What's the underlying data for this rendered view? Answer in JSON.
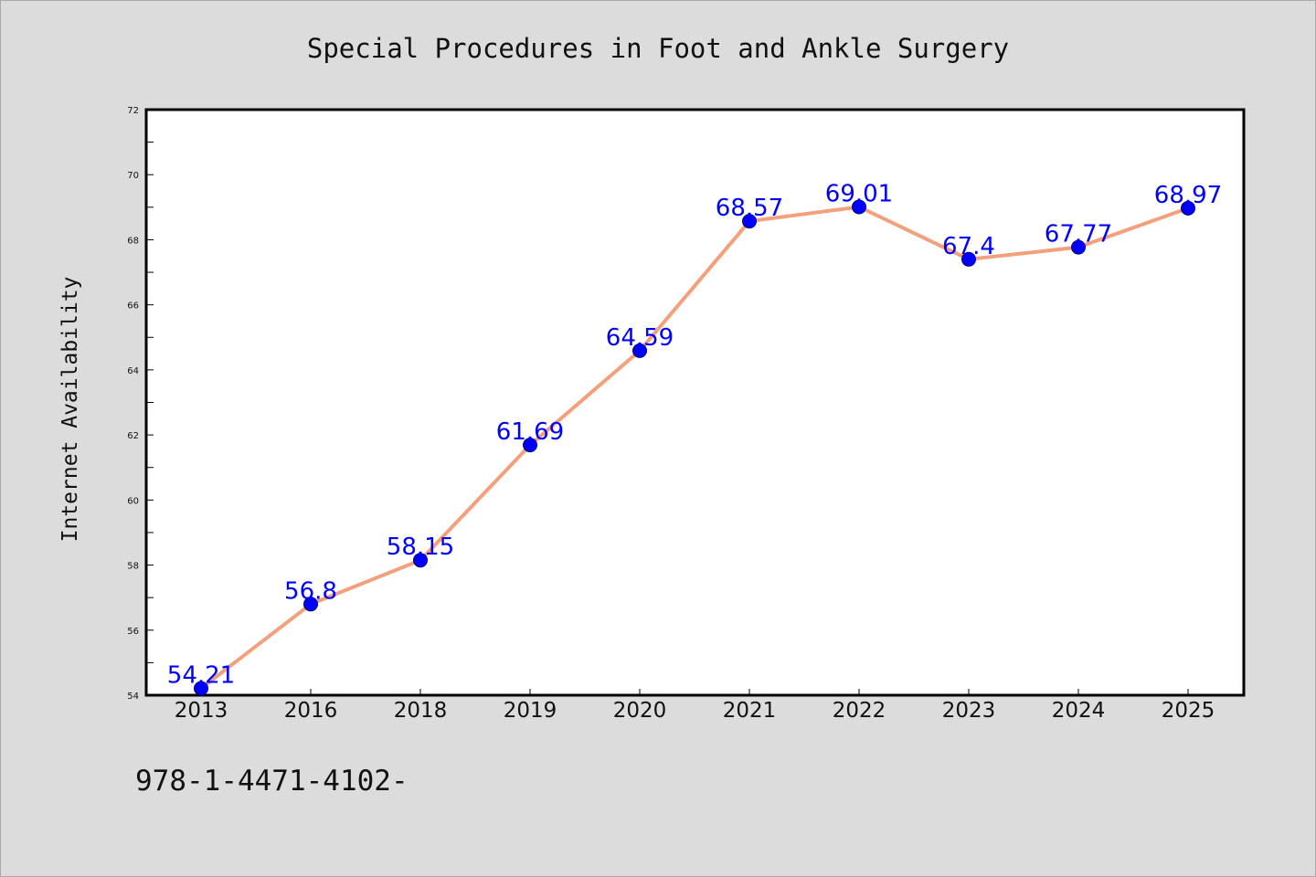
{
  "chart_data": {
    "type": "line",
    "title": "Special Procedures in Foot and Ankle Surgery",
    "xlabel": "",
    "ylabel": "Internet Availability",
    "categories": [
      "2013",
      "2016",
      "2018",
      "2019",
      "2020",
      "2021",
      "2022",
      "2023",
      "2024",
      "2025"
    ],
    "series": [
      {
        "values": [
          54.21,
          56.8,
          58.15,
          61.69,
          64.59,
          68.57,
          69.01,
          67.4,
          67.77,
          68.97
        ]
      }
    ],
    "data_labels": [
      "54.21",
      "56.8",
      "58.15",
      "61.69",
      "64.59",
      "68.57",
      "69.01",
      "67.4",
      "67.77",
      "68.97"
    ],
    "ylim": [
      54,
      72
    ],
    "yticks": [
      54,
      56,
      58,
      60,
      62,
      64,
      66,
      68,
      70,
      72
    ],
    "grid": false,
    "colors": {
      "line": "#f4a07c",
      "marker": "#0000ff",
      "label": "#0000ff",
      "background": "#dcdcdc",
      "plot_bg": "#ffffff"
    }
  },
  "footer_text": "978-1-4471-4102-"
}
